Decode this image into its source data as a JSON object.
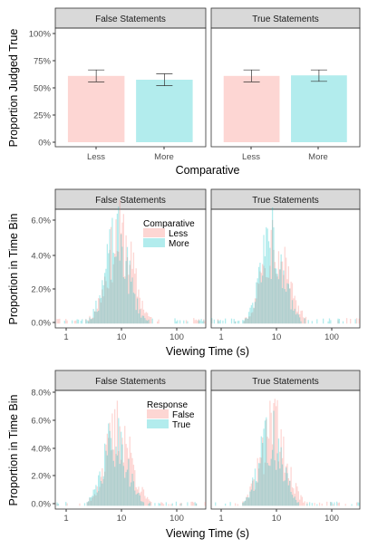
{
  "colors": {
    "pink": "#F8766D",
    "teal": "#00BFC4",
    "strip_fill": "#D9D9D9",
    "panel_border": "#333333",
    "errorbar": "#333333"
  },
  "chart_data": [
    {
      "type": "bar",
      "facets": [
        "False Statements",
        "True Statements"
      ],
      "categories": [
        "Less",
        "More"
      ],
      "xlabel": "Comparative",
      "ylabel": "Proportion Judged True",
      "ylim": [
        0,
        1.05
      ],
      "yticks": [
        0,
        0.25,
        0.5,
        0.75,
        1.0
      ],
      "ytick_labels": [
        "0%",
        "25%",
        "50%",
        "75%",
        "100%"
      ],
      "bar_alpha": 0.3,
      "values": {
        "False Statements": [
          0.61,
          0.575
        ],
        "True Statements": [
          0.61,
          0.615
        ]
      },
      "errors": {
        "False Statements": [
          [
            0.555,
            0.665
          ],
          [
            0.52,
            0.63
          ]
        ],
        "True Statements": [
          [
            0.555,
            0.665
          ],
          [
            0.56,
            0.665
          ]
        ]
      }
    },
    {
      "type": "histogram",
      "facets": [
        "False Statements",
        "True Statements"
      ],
      "xscale": "log",
      "xlim": [
        0.7,
        260
      ],
      "xticks": [
        1,
        10,
        100
      ],
      "xtick_labels": [
        "1",
        "10",
        "100"
      ],
      "ylim": [
        -0.0025,
        0.066
      ],
      "yticks": [
        0,
        0.02,
        0.04,
        0.06
      ],
      "ytick_labels": [
        "0.0%",
        "2.0%",
        "4.0%",
        "6.0%"
      ],
      "xlabel": "Viewing Time (s)",
      "ylabel": "Proportion in Time Bin",
      "legend": {
        "title": "Comparative",
        "entries": [
          "Less",
          "More"
        ]
      },
      "series": [
        {
          "name": "Less",
          "distribution": {
            "center_s": 9.0,
            "log10_sd": 0.22,
            "peak": 0.05,
            "seed": 11
          }
        },
        {
          "name": "More",
          "distribution": {
            "center_s": 8.0,
            "log10_sd": 0.2,
            "peak": 0.047,
            "seed": 23
          }
        }
      ]
    },
    {
      "type": "histogram",
      "facets": [
        "False Statements",
        "True Statements"
      ],
      "xscale": "log",
      "xlim": [
        0.7,
        260
      ],
      "xticks": [
        1,
        10,
        100
      ],
      "xtick_labels": [
        "1",
        "10",
        "100"
      ],
      "ylim": [
        -0.0025,
        0.088
      ],
      "yticks": [
        0,
        0.02,
        0.04,
        0.06,
        0.08
      ],
      "ytick_labels": [
        "0.0%",
        "2.0%",
        "4.0%",
        "6.0%",
        "8.0%"
      ],
      "xlabel": "Viewing Time (s)",
      "ylabel": "Proportion in Time Bin",
      "legend": {
        "title": "Response",
        "entries": [
          "False",
          "True"
        ]
      },
      "series": [
        {
          "name": "False",
          "distribution": {
            "center_s": 8.5,
            "log10_sd": 0.22,
            "peak": 0.058,
            "seed": 37
          }
        },
        {
          "name": "True",
          "distribution": {
            "center_s": 7.5,
            "log10_sd": 0.2,
            "peak": 0.052,
            "seed": 41
          }
        }
      ]
    }
  ]
}
